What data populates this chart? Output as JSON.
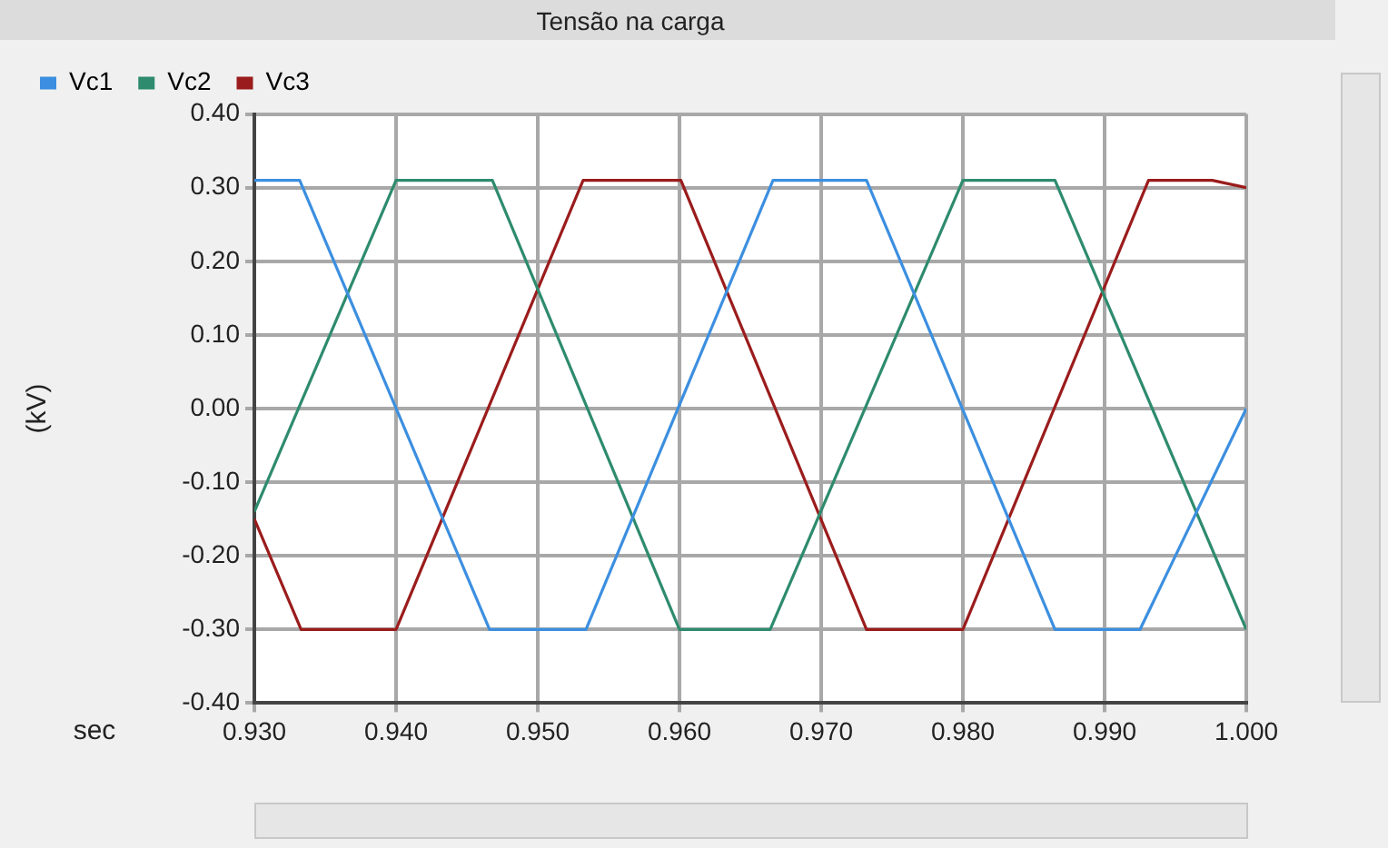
{
  "chart_data": {
    "type": "line",
    "title": "Tensão na carga",
    "xlabel": "sec",
    "ylabel": "(kV)",
    "xlim": [
      0.93,
      1.0
    ],
    "ylim": [
      -0.4,
      0.4
    ],
    "xticks": [
      {
        "value": 0.93,
        "label": "0.930"
      },
      {
        "value": 0.94,
        "label": "0.940"
      },
      {
        "value": 0.95,
        "label": "0.950"
      },
      {
        "value": 0.96,
        "label": "0.960"
      },
      {
        "value": 0.97,
        "label": "0.970"
      },
      {
        "value": 0.98,
        "label": "0.980"
      },
      {
        "value": 0.99,
        "label": "0.990"
      },
      {
        "value": 1.0,
        "label": "1.000"
      }
    ],
    "yticks": [
      {
        "value": 0.4,
        "label": "0.40"
      },
      {
        "value": 0.3,
        "label": "0.30"
      },
      {
        "value": 0.2,
        "label": "0.20"
      },
      {
        "value": 0.1,
        "label": "0.10"
      },
      {
        "value": 0,
        "label": "0.00"
      },
      {
        "value": -0.1,
        "label": "-0.10"
      },
      {
        "value": -0.2,
        "label": "-0.20"
      },
      {
        "value": -0.3,
        "label": "-0.30"
      },
      {
        "value": -0.4,
        "label": "-0.40"
      }
    ],
    "grid": true,
    "legend": "top",
    "marker": "none",
    "line_style": "solid",
    "series": [
      {
        "name": "Vc1",
        "color": "#3c8fe0",
        "x": [
          0.93,
          0.9332,
          0.9466,
          0.9534,
          0.9666,
          0.9732,
          0.9865,
          0.9925,
          1.0
        ],
        "values": [
          0.31,
          0.31,
          -0.3,
          -0.3,
          0.31,
          0.31,
          -0.3,
          -0.3,
          0.0
        ]
      },
      {
        "name": "Vc2",
        "color": "#2e8b6e",
        "x": [
          0.93,
          0.94,
          0.9468,
          0.96,
          0.9664,
          0.98,
          0.9865,
          1.0
        ],
        "values": [
          -0.14,
          0.31,
          0.31,
          -0.3,
          -0.3,
          0.31,
          0.31,
          -0.3
        ]
      },
      {
        "name": "Vc3",
        "color": "#9b1c1c",
        "x": [
          0.93,
          0.9333,
          0.94,
          0.9532,
          0.9601,
          0.9732,
          0.98,
          0.9931,
          0.9976,
          1.0
        ],
        "values": [
          -0.15,
          -0.3,
          -0.3,
          0.31,
          0.31,
          -0.3,
          -0.3,
          0.31,
          0.31,
          0.3
        ]
      }
    ]
  }
}
